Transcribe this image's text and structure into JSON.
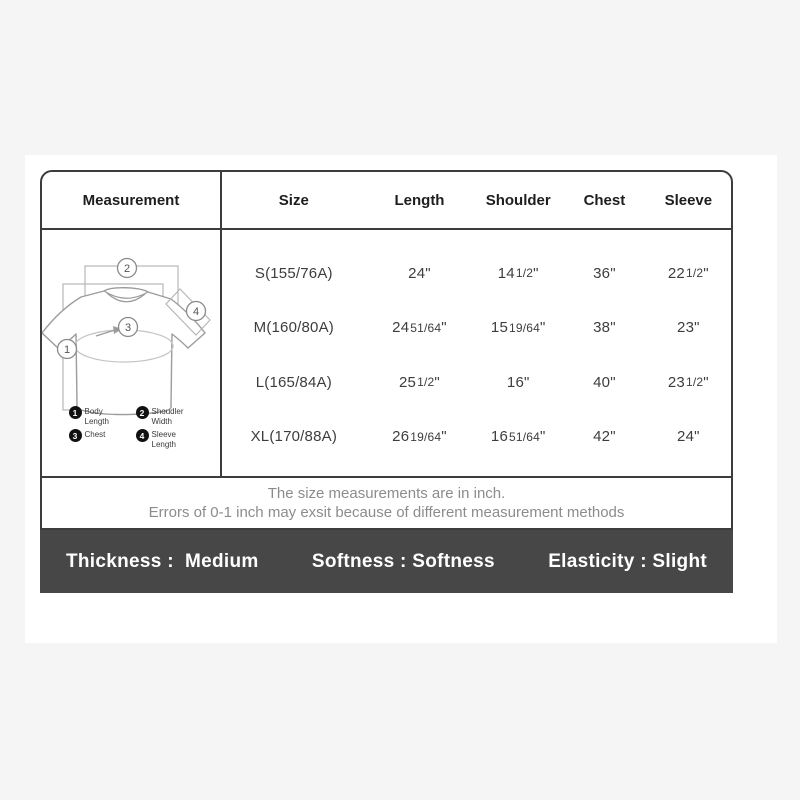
{
  "page": {
    "background_color": "#f5f5f5",
    "card_color": "#ffffff",
    "border_color": "#3c3c3c",
    "bar_color": "#474747"
  },
  "measurement_panel": {
    "title": "Measurement",
    "markers": [
      "1",
      "2",
      "3",
      "4"
    ],
    "legend": [
      {
        "num": "1",
        "label": "Body Length"
      },
      {
        "num": "2",
        "label": "Shoudler Width"
      },
      {
        "num": "3",
        "label": "Chest"
      },
      {
        "num": "4",
        "label": "Sleeve Length"
      }
    ]
  },
  "size_table": {
    "columns": [
      "Size",
      "Length",
      "Shoulder",
      "Chest",
      "Sleeve"
    ],
    "rows": [
      {
        "size": "S(155/76A)",
        "length": "24\"",
        "shoulder": "14 1/2\"",
        "chest": "36\"",
        "sleeve": "22 1/2\""
      },
      {
        "size": "M(160/80A)",
        "length": "24 51/64\"",
        "shoulder": "15 19/64\"",
        "chest": "38\"",
        "sleeve": "23\""
      },
      {
        "size": "L(165/84A)",
        "length": "25 1/2\"",
        "shoulder": "16\"",
        "chest": "40\"",
        "sleeve": "23 1/2\""
      },
      {
        "size": "XL(170/88A)",
        "length": "26 19/64\"",
        "shoulder": "16 51/64\"",
        "chest": "42\"",
        "sleeve": "24\""
      }
    ]
  },
  "notes": {
    "line1": "The size measurements are in inch.",
    "line2": "Errors of 0-1 inch may exsit because of different measurement methods"
  },
  "attributes_bar": {
    "items": [
      "Thickness :  Medium",
      "Softness : Softness",
      "Elasticity : Slight"
    ]
  }
}
